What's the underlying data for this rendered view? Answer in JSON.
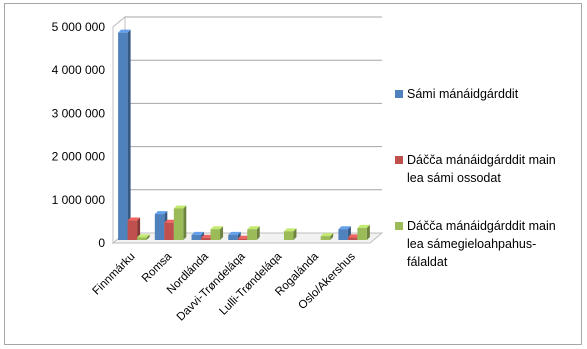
{
  "chart_data": {
    "type": "bar",
    "title": "",
    "xlabel": "",
    "ylabel": "",
    "ylim": [
      0,
      5000000
    ],
    "ytick_values": [
      0,
      1000000,
      2000000,
      3000000,
      4000000,
      5000000
    ],
    "ytick_labels": [
      "0",
      "1 000 000",
      "2 000 000",
      "3 000 000",
      "4 000 000",
      "5 000 000"
    ],
    "grid": "horizontal",
    "style": "3d-clustered",
    "legend_position": "right",
    "categories": [
      "Finnmárku",
      "Romsa",
      "Nordlánda",
      "Davvi-Trøndeláqa",
      "Lulli-Trøndeláqa",
      "Rogalánda",
      "Oslo/Akershus"
    ],
    "series": [
      {
        "name": "Sámi mánáidgárddit",
        "color": "#4f81bd",
        "values": [
          4800000,
          600000,
          120000,
          120000,
          0,
          0,
          250000
        ]
      },
      {
        "name": "Dáčča mánáidgárddit main lea sámi ossodat",
        "color": "#c0504d",
        "values": [
          450000,
          400000,
          50000,
          30000,
          0,
          0,
          60000
        ]
      },
      {
        "name": "Dáčča mánáidgárddit main lea sámegieloahpahus-fálaldat",
        "color": "#9bbb59",
        "values": [
          60000,
          730000,
          250000,
          250000,
          200000,
          90000,
          280000
        ]
      }
    ]
  },
  "legend_lines": [
    [
      "Sámi mánáidgárddit"
    ],
    [
      "Dáčča mánáidgárddit main",
      "lea sámi ossodat"
    ],
    [
      "Dáčča mánáidgárddit main",
      "lea sámegieloahpahus-",
      "fálaldat"
    ]
  ]
}
